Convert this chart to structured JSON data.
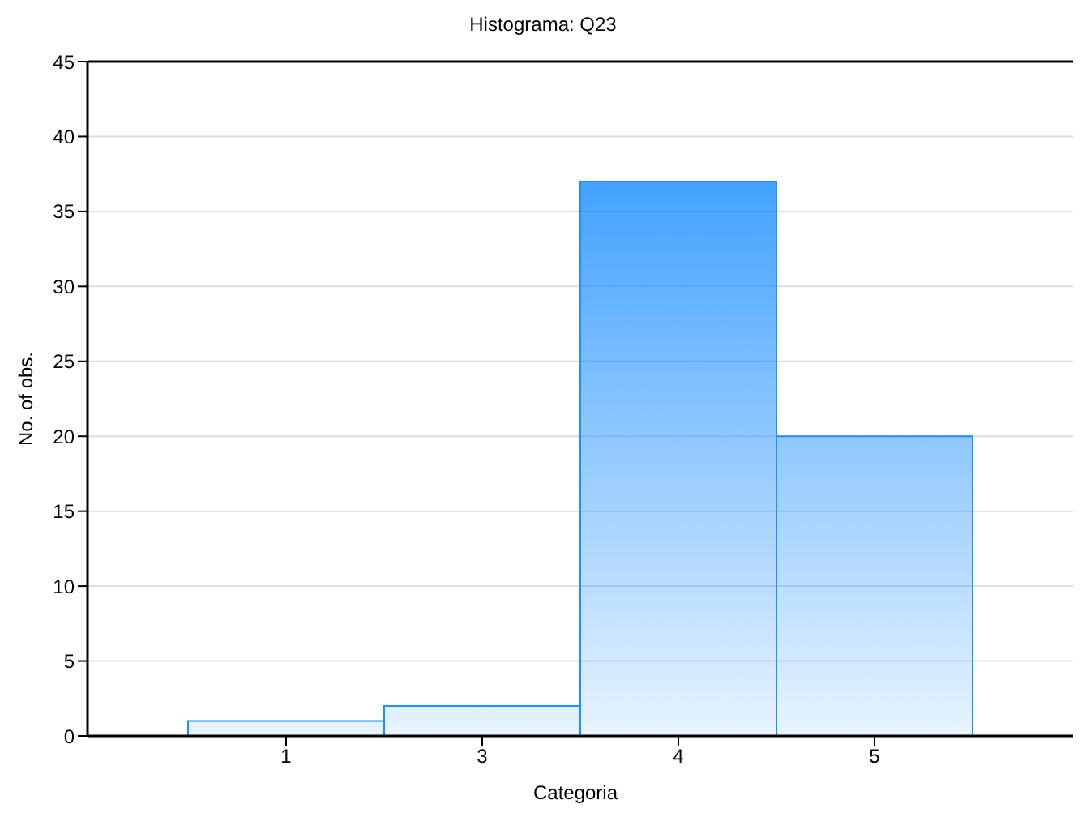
{
  "chart_data": {
    "type": "bar",
    "title": "Histograma: Q23",
    "xlabel": "Categoria",
    "ylabel": "No. of obs.",
    "categories": [
      "1",
      "3",
      "4",
      "5"
    ],
    "values": [
      1,
      2,
      37,
      20
    ],
    "color": "#1e90ff",
    "ylim": [
      0,
      45
    ],
    "yticks": [
      0,
      5,
      10,
      15,
      20,
      25,
      30,
      35,
      40,
      45
    ],
    "grid": "y"
  }
}
